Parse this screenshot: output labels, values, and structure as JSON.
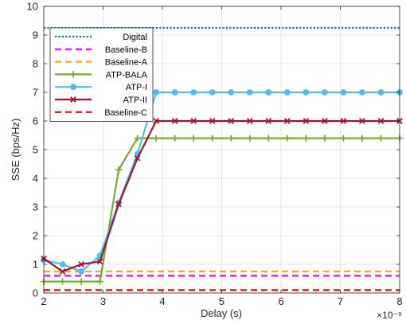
{
  "chart_data": {
    "type": "line",
    "xlabel": "Delay (s)",
    "ylabel": "SSE (bps/Hz)",
    "x_exponent": "×10⁻⁹",
    "xlim": [
      2,
      8
    ],
    "ylim": [
      0,
      10
    ],
    "xticks": [
      2,
      3,
      4,
      5,
      6,
      7,
      8
    ],
    "yticks": [
      0,
      1,
      2,
      3,
      4,
      5,
      6,
      7,
      8,
      9,
      10
    ],
    "grid": true,
    "legend_position": "top-left",
    "series": [
      {
        "name": "Digital",
        "color": "#0072BD",
        "style": "dotted",
        "marker": "none",
        "x": [
          2,
          8
        ],
        "y": [
          9.25,
          9.25
        ]
      },
      {
        "name": "Baseline-B",
        "color": "#FF00FF",
        "style": "dashed",
        "marker": "none",
        "x": [
          2,
          8
        ],
        "y": [
          0.6,
          0.6
        ]
      },
      {
        "name": "Baseline-A",
        "color": "#EDB120",
        "style": "dashed",
        "marker": "none",
        "x": [
          2,
          8
        ],
        "y": [
          0.75,
          0.75
        ]
      },
      {
        "name": "ATP-BALA",
        "color": "#77AC30",
        "style": "solid",
        "marker": "plus",
        "x": [
          2,
          2.3158,
          2.6316,
          2.9474,
          3.2632,
          3.5789,
          3.8947,
          4.2105,
          4.5263,
          4.8421,
          5.1579,
          5.4737,
          5.7895,
          6.1053,
          6.4211,
          6.7368,
          7.0526,
          7.3684,
          7.6842,
          8
        ],
        "y": [
          0.4,
          0.4,
          0.4,
          0.4,
          4.3,
          5.4,
          5.4,
          5.4,
          5.4,
          5.4,
          5.4,
          5.4,
          5.4,
          5.4,
          5.4,
          5.4,
          5.4,
          5.4,
          5.4,
          5.4
        ]
      },
      {
        "name": "ATP-I",
        "color": "#4DBEEE",
        "style": "solid",
        "marker": "circle",
        "x": [
          2,
          2.3158,
          2.6316,
          2.9474,
          3.2632,
          3.5789,
          3.8947,
          4.2105,
          4.5263,
          4.8421,
          5.1579,
          5.4737,
          5.7895,
          6.1053,
          6.4211,
          6.7368,
          7.0526,
          7.3684,
          7.6842,
          8
        ],
        "y": [
          1.15,
          1.0,
          0.75,
          1.3,
          3.15,
          4.85,
          7.0,
          7.0,
          7.0,
          7.0,
          7.0,
          7.0,
          7.0,
          7.0,
          7.0,
          7.0,
          7.0,
          7.0,
          7.0,
          7.0
        ]
      },
      {
        "name": "ATP-II",
        "color": "#A2142F",
        "style": "solid",
        "marker": "x",
        "x": [
          2,
          2.3158,
          2.6316,
          2.9474,
          3.2632,
          3.5789,
          3.8947,
          4.2105,
          4.5263,
          4.8421,
          5.1579,
          5.4737,
          5.7895,
          6.1053,
          6.4211,
          6.7368,
          7.0526,
          7.3684,
          7.6842,
          8
        ],
        "y": [
          1.2,
          0.75,
          1.0,
          1.1,
          3.1,
          4.7,
          6.0,
          6.0,
          6.0,
          6.0,
          6.0,
          6.0,
          6.0,
          6.0,
          6.0,
          6.0,
          6.0,
          6.0,
          6.0,
          6.0
        ]
      },
      {
        "name": "Baseline-C",
        "color": "#FF0000",
        "style": "dashed",
        "marker": "none",
        "x": [
          2,
          8
        ],
        "y": [
          0.1,
          0.1
        ]
      }
    ]
  }
}
